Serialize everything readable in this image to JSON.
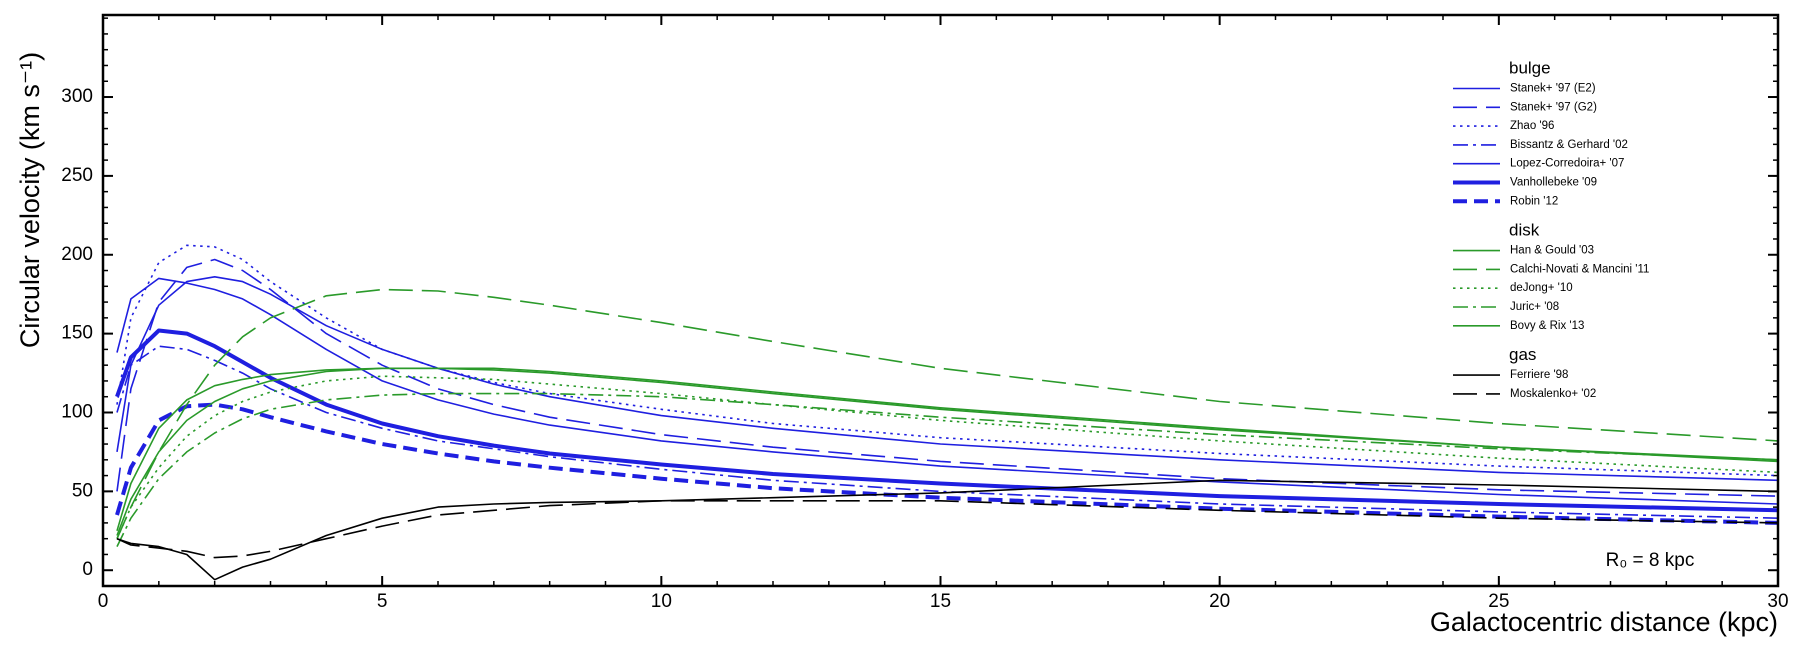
{
  "chart_data": {
    "type": "line",
    "x_label": "Galactocentric distance (kpc)",
    "y_label": "Circular velocity (km s⁻¹)",
    "annotation": "R₀ = 8 kpc",
    "xlim": [
      0,
      30
    ],
    "xticks": [
      0,
      5,
      10,
      15,
      20,
      25,
      30
    ],
    "ylim": [
      -10,
      352
    ],
    "yticks": [
      0,
      50,
      100,
      150,
      200,
      250,
      300
    ],
    "minor_ticks": true,
    "x": [
      0.25,
      0.5,
      1,
      1.5,
      2,
      2.5,
      3,
      4,
      5,
      6,
      7,
      8,
      10,
      12,
      15,
      20,
      25,
      30
    ],
    "series_groups": [
      {
        "name": "bulge",
        "color": "#1f1fe0",
        "series": [
          {
            "name": "Stanek+ '97 (E2)",
            "color": "#1f1fe0",
            "dash": "solid",
            "width": 1.6,
            "values": [
              75,
              130,
              168,
              183,
              186,
              183,
              175,
              155,
              140,
              128,
              118,
              110,
              98,
              90,
              80,
              70,
              62,
              57
            ]
          },
          {
            "name": "Stanek+ '97 (G2)",
            "color": "#1f1fe0",
            "dash": "dashed",
            "width": 1.6,
            "values": [
              50,
              115,
              170,
              192,
              197,
              190,
              178,
              150,
              130,
              115,
              105,
              97,
              86,
              78,
              69,
              58,
              51,
              47
            ]
          },
          {
            "name": "Zhao '96",
            "color": "#1f1fe0",
            "dash": "dotted",
            "width": 1.6,
            "values": [
              105,
              160,
              195,
              206,
              205,
              197,
              183,
              160,
              140,
              128,
              119,
              112,
              102,
              93,
              84,
              74,
              66,
              60
            ]
          },
          {
            "name": "Bissantz & Gerhard '02",
            "color": "#1f1fe0",
            "dash": "dashdot",
            "width": 1.6,
            "values": [
              100,
              130,
              142,
              140,
              133,
              125,
              115,
              100,
              90,
              82,
              77,
              72,
              64,
              57,
              50,
              42,
              37,
              33
            ]
          },
          {
            "name": "Lopez-Corredoira+ '07",
            "color": "#1f1fe0",
            "dash": "solid",
            "width": 1.6,
            "values": [
              138,
              172,
              185,
              182,
              178,
              172,
              162,
              140,
              120,
              108,
              99,
              92,
              82,
              75,
              66,
              56,
              48,
              42
            ]
          },
          {
            "name": "Vanhollebeke '09",
            "color": "#1f1fe0",
            "dash": "solid",
            "width": 4,
            "values": [
              110,
              135,
              152,
              150,
              142,
              132,
              122,
              105,
              93,
              85,
              79,
              74,
              67,
              61,
              55,
              47,
              42,
              38
            ]
          },
          {
            "name": "Robin '12",
            "color": "#1f1fe0",
            "dash": "thickdash",
            "width": 4,
            "values": [
              35,
              65,
              95,
              104,
              105,
              102,
              97,
              88,
              80,
              74,
              69,
              65,
              58,
              52,
              46,
              39,
              34,
              30
            ]
          }
        ]
      },
      {
        "name": "disk",
        "color": "#2a9a2a",
        "series": [
          {
            "name": "Han & Gould '03",
            "color": "#2a9a2a",
            "dash": "solid",
            "width": 1.6,
            "values": [
              22,
              45,
              75,
              95,
              107,
              115,
              120,
              126,
              128,
              128,
              128,
              126,
              120,
              113,
              103,
              90,
              78,
              70
            ]
          },
          {
            "name": "Calchi-Novati & Mancini '11",
            "color": "#2a9a2a",
            "dash": "dashed",
            "width": 1.6,
            "values": [
              20,
              40,
              75,
              105,
              130,
              148,
              160,
              174,
              178,
              177,
              173,
              168,
              157,
              145,
              128,
              107,
              93,
              82
            ]
          },
          {
            "name": "deJong+ '10",
            "color": "#2a9a2a",
            "dash": "dotted",
            "width": 1.6,
            "values": [
              20,
              40,
              65,
              85,
              98,
              107,
              113,
              120,
              123,
              122,
              121,
              118,
              112,
              105,
              95,
              82,
              71,
              62
            ]
          },
          {
            "name": "Juric+ '08",
            "color": "#2a9a2a",
            "dash": "dashdot",
            "width": 1.6,
            "values": [
              15,
              33,
              58,
              75,
              87,
              96,
              102,
              108,
              111,
              112,
              112,
              112,
              110,
              105,
              97,
              86,
              77,
              70
            ]
          },
          {
            "name": "Bovy & Rix '13",
            "color": "#2a9a2a",
            "dash": "solid",
            "width": 1.6,
            "values": [
              25,
              55,
              90,
              108,
              117,
              121,
              124,
              127,
              128,
              128,
              127,
              125,
              119,
              112,
              102,
              89,
              78,
              69
            ]
          }
        ]
      },
      {
        "name": "gas",
        "color": "#000000",
        "series": [
          {
            "name": "Ferriere '98",
            "color": "#000000",
            "dash": "solid",
            "width": 1.6,
            "values": [
              20,
              17,
              15,
              10,
              -6,
              2,
              7,
              22,
              33,
              40,
              42,
              43,
              44,
              46,
              49,
              57,
              54,
              50
            ]
          },
          {
            "name": "Moskalenko+ '02",
            "color": "#000000",
            "dash": "dashed",
            "width": 1.6,
            "values": [
              20,
              16,
              14,
              12,
              8,
              9,
              12,
              20,
              28,
              35,
              38,
              41,
              44,
              44,
              44,
              38,
              33,
              30
            ]
          }
        ]
      }
    ]
  }
}
